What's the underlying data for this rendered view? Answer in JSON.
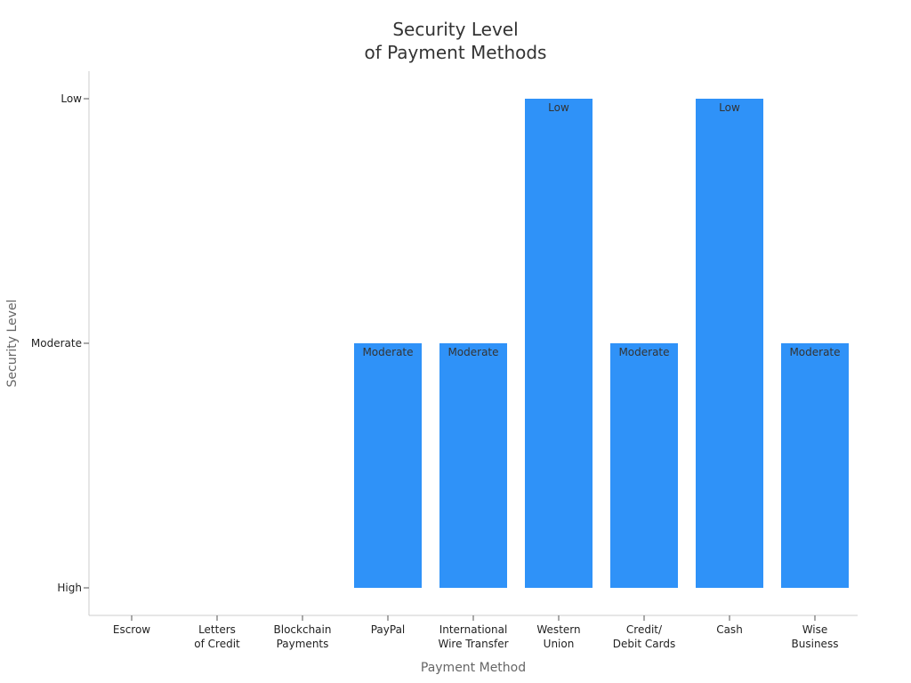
{
  "chart_data": {
    "type": "bar",
    "title": [
      "Security Level",
      "of Payment Methods"
    ],
    "xlabel": "Payment Method",
    "ylabel": "Security Level",
    "y_levels": [
      "High",
      "Moderate",
      "Low"
    ],
    "categories": [
      [
        "Escrow"
      ],
      [
        "Letters",
        "of Credit"
      ],
      [
        "Blockchain",
        "Payments"
      ],
      [
        "PayPal"
      ],
      [
        "International",
        "Wire Transfer"
      ],
      [
        "Western",
        "Union"
      ],
      [
        "Credit/",
        "Debit Cards"
      ],
      [
        "Cash"
      ],
      [
        "Wise",
        "Business"
      ]
    ],
    "values": [
      "High",
      "High",
      "High",
      "Moderate",
      "Moderate",
      "Low",
      "Moderate",
      "Low",
      "Moderate"
    ],
    "bar_color": "#2f92f8",
    "grid": false
  }
}
